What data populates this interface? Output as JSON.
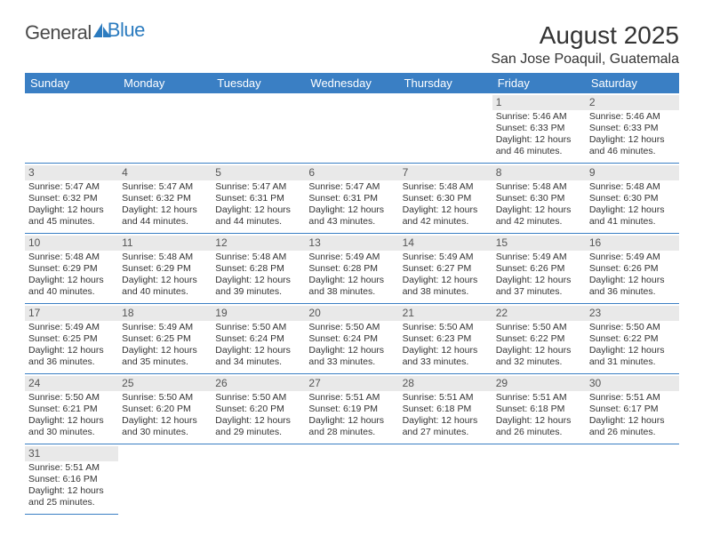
{
  "logo": {
    "text_a": "General",
    "text_b": "Blue"
  },
  "title": "August 2025",
  "location": "San Jose Poaquil, Guatemala",
  "colors": {
    "header_bg": "#3a7fc4",
    "header_fg": "#ffffff",
    "daynum_bg": "#e9e9e9",
    "border": "#3a7fc4"
  },
  "day_headers": [
    "Sunday",
    "Monday",
    "Tuesday",
    "Wednesday",
    "Thursday",
    "Friday",
    "Saturday"
  ],
  "weeks": [
    [
      null,
      null,
      null,
      null,
      null,
      {
        "n": "1",
        "sr": "Sunrise: 5:46 AM",
        "ss": "Sunset: 6:33 PM",
        "d1": "Daylight: 12 hours",
        "d2": "and 46 minutes."
      },
      {
        "n": "2",
        "sr": "Sunrise: 5:46 AM",
        "ss": "Sunset: 6:33 PM",
        "d1": "Daylight: 12 hours",
        "d2": "and 46 minutes."
      }
    ],
    [
      {
        "n": "3",
        "sr": "Sunrise: 5:47 AM",
        "ss": "Sunset: 6:32 PM",
        "d1": "Daylight: 12 hours",
        "d2": "and 45 minutes."
      },
      {
        "n": "4",
        "sr": "Sunrise: 5:47 AM",
        "ss": "Sunset: 6:32 PM",
        "d1": "Daylight: 12 hours",
        "d2": "and 44 minutes."
      },
      {
        "n": "5",
        "sr": "Sunrise: 5:47 AM",
        "ss": "Sunset: 6:31 PM",
        "d1": "Daylight: 12 hours",
        "d2": "and 44 minutes."
      },
      {
        "n": "6",
        "sr": "Sunrise: 5:47 AM",
        "ss": "Sunset: 6:31 PM",
        "d1": "Daylight: 12 hours",
        "d2": "and 43 minutes."
      },
      {
        "n": "7",
        "sr": "Sunrise: 5:48 AM",
        "ss": "Sunset: 6:30 PM",
        "d1": "Daylight: 12 hours",
        "d2": "and 42 minutes."
      },
      {
        "n": "8",
        "sr": "Sunrise: 5:48 AM",
        "ss": "Sunset: 6:30 PM",
        "d1": "Daylight: 12 hours",
        "d2": "and 42 minutes."
      },
      {
        "n": "9",
        "sr": "Sunrise: 5:48 AM",
        "ss": "Sunset: 6:30 PM",
        "d1": "Daylight: 12 hours",
        "d2": "and 41 minutes."
      }
    ],
    [
      {
        "n": "10",
        "sr": "Sunrise: 5:48 AM",
        "ss": "Sunset: 6:29 PM",
        "d1": "Daylight: 12 hours",
        "d2": "and 40 minutes."
      },
      {
        "n": "11",
        "sr": "Sunrise: 5:48 AM",
        "ss": "Sunset: 6:29 PM",
        "d1": "Daylight: 12 hours",
        "d2": "and 40 minutes."
      },
      {
        "n": "12",
        "sr": "Sunrise: 5:48 AM",
        "ss": "Sunset: 6:28 PM",
        "d1": "Daylight: 12 hours",
        "d2": "and 39 minutes."
      },
      {
        "n": "13",
        "sr": "Sunrise: 5:49 AM",
        "ss": "Sunset: 6:28 PM",
        "d1": "Daylight: 12 hours",
        "d2": "and 38 minutes."
      },
      {
        "n": "14",
        "sr": "Sunrise: 5:49 AM",
        "ss": "Sunset: 6:27 PM",
        "d1": "Daylight: 12 hours",
        "d2": "and 38 minutes."
      },
      {
        "n": "15",
        "sr": "Sunrise: 5:49 AM",
        "ss": "Sunset: 6:26 PM",
        "d1": "Daylight: 12 hours",
        "d2": "and 37 minutes."
      },
      {
        "n": "16",
        "sr": "Sunrise: 5:49 AM",
        "ss": "Sunset: 6:26 PM",
        "d1": "Daylight: 12 hours",
        "d2": "and 36 minutes."
      }
    ],
    [
      {
        "n": "17",
        "sr": "Sunrise: 5:49 AM",
        "ss": "Sunset: 6:25 PM",
        "d1": "Daylight: 12 hours",
        "d2": "and 36 minutes."
      },
      {
        "n": "18",
        "sr": "Sunrise: 5:49 AM",
        "ss": "Sunset: 6:25 PM",
        "d1": "Daylight: 12 hours",
        "d2": "and 35 minutes."
      },
      {
        "n": "19",
        "sr": "Sunrise: 5:50 AM",
        "ss": "Sunset: 6:24 PM",
        "d1": "Daylight: 12 hours",
        "d2": "and 34 minutes."
      },
      {
        "n": "20",
        "sr": "Sunrise: 5:50 AM",
        "ss": "Sunset: 6:24 PM",
        "d1": "Daylight: 12 hours",
        "d2": "and 33 minutes."
      },
      {
        "n": "21",
        "sr": "Sunrise: 5:50 AM",
        "ss": "Sunset: 6:23 PM",
        "d1": "Daylight: 12 hours",
        "d2": "and 33 minutes."
      },
      {
        "n": "22",
        "sr": "Sunrise: 5:50 AM",
        "ss": "Sunset: 6:22 PM",
        "d1": "Daylight: 12 hours",
        "d2": "and 32 minutes."
      },
      {
        "n": "23",
        "sr": "Sunrise: 5:50 AM",
        "ss": "Sunset: 6:22 PM",
        "d1": "Daylight: 12 hours",
        "d2": "and 31 minutes."
      }
    ],
    [
      {
        "n": "24",
        "sr": "Sunrise: 5:50 AM",
        "ss": "Sunset: 6:21 PM",
        "d1": "Daylight: 12 hours",
        "d2": "and 30 minutes."
      },
      {
        "n": "25",
        "sr": "Sunrise: 5:50 AM",
        "ss": "Sunset: 6:20 PM",
        "d1": "Daylight: 12 hours",
        "d2": "and 30 minutes."
      },
      {
        "n": "26",
        "sr": "Sunrise: 5:50 AM",
        "ss": "Sunset: 6:20 PM",
        "d1": "Daylight: 12 hours",
        "d2": "and 29 minutes."
      },
      {
        "n": "27",
        "sr": "Sunrise: 5:51 AM",
        "ss": "Sunset: 6:19 PM",
        "d1": "Daylight: 12 hours",
        "d2": "and 28 minutes."
      },
      {
        "n": "28",
        "sr": "Sunrise: 5:51 AM",
        "ss": "Sunset: 6:18 PM",
        "d1": "Daylight: 12 hours",
        "d2": "and 27 minutes."
      },
      {
        "n": "29",
        "sr": "Sunrise: 5:51 AM",
        "ss": "Sunset: 6:18 PM",
        "d1": "Daylight: 12 hours",
        "d2": "and 26 minutes."
      },
      {
        "n": "30",
        "sr": "Sunrise: 5:51 AM",
        "ss": "Sunset: 6:17 PM",
        "d1": "Daylight: 12 hours",
        "d2": "and 26 minutes."
      }
    ],
    [
      {
        "n": "31",
        "sr": "Sunrise: 5:51 AM",
        "ss": "Sunset: 6:16 PM",
        "d1": "Daylight: 12 hours",
        "d2": "and 25 minutes."
      },
      null,
      null,
      null,
      null,
      null,
      null
    ]
  ]
}
